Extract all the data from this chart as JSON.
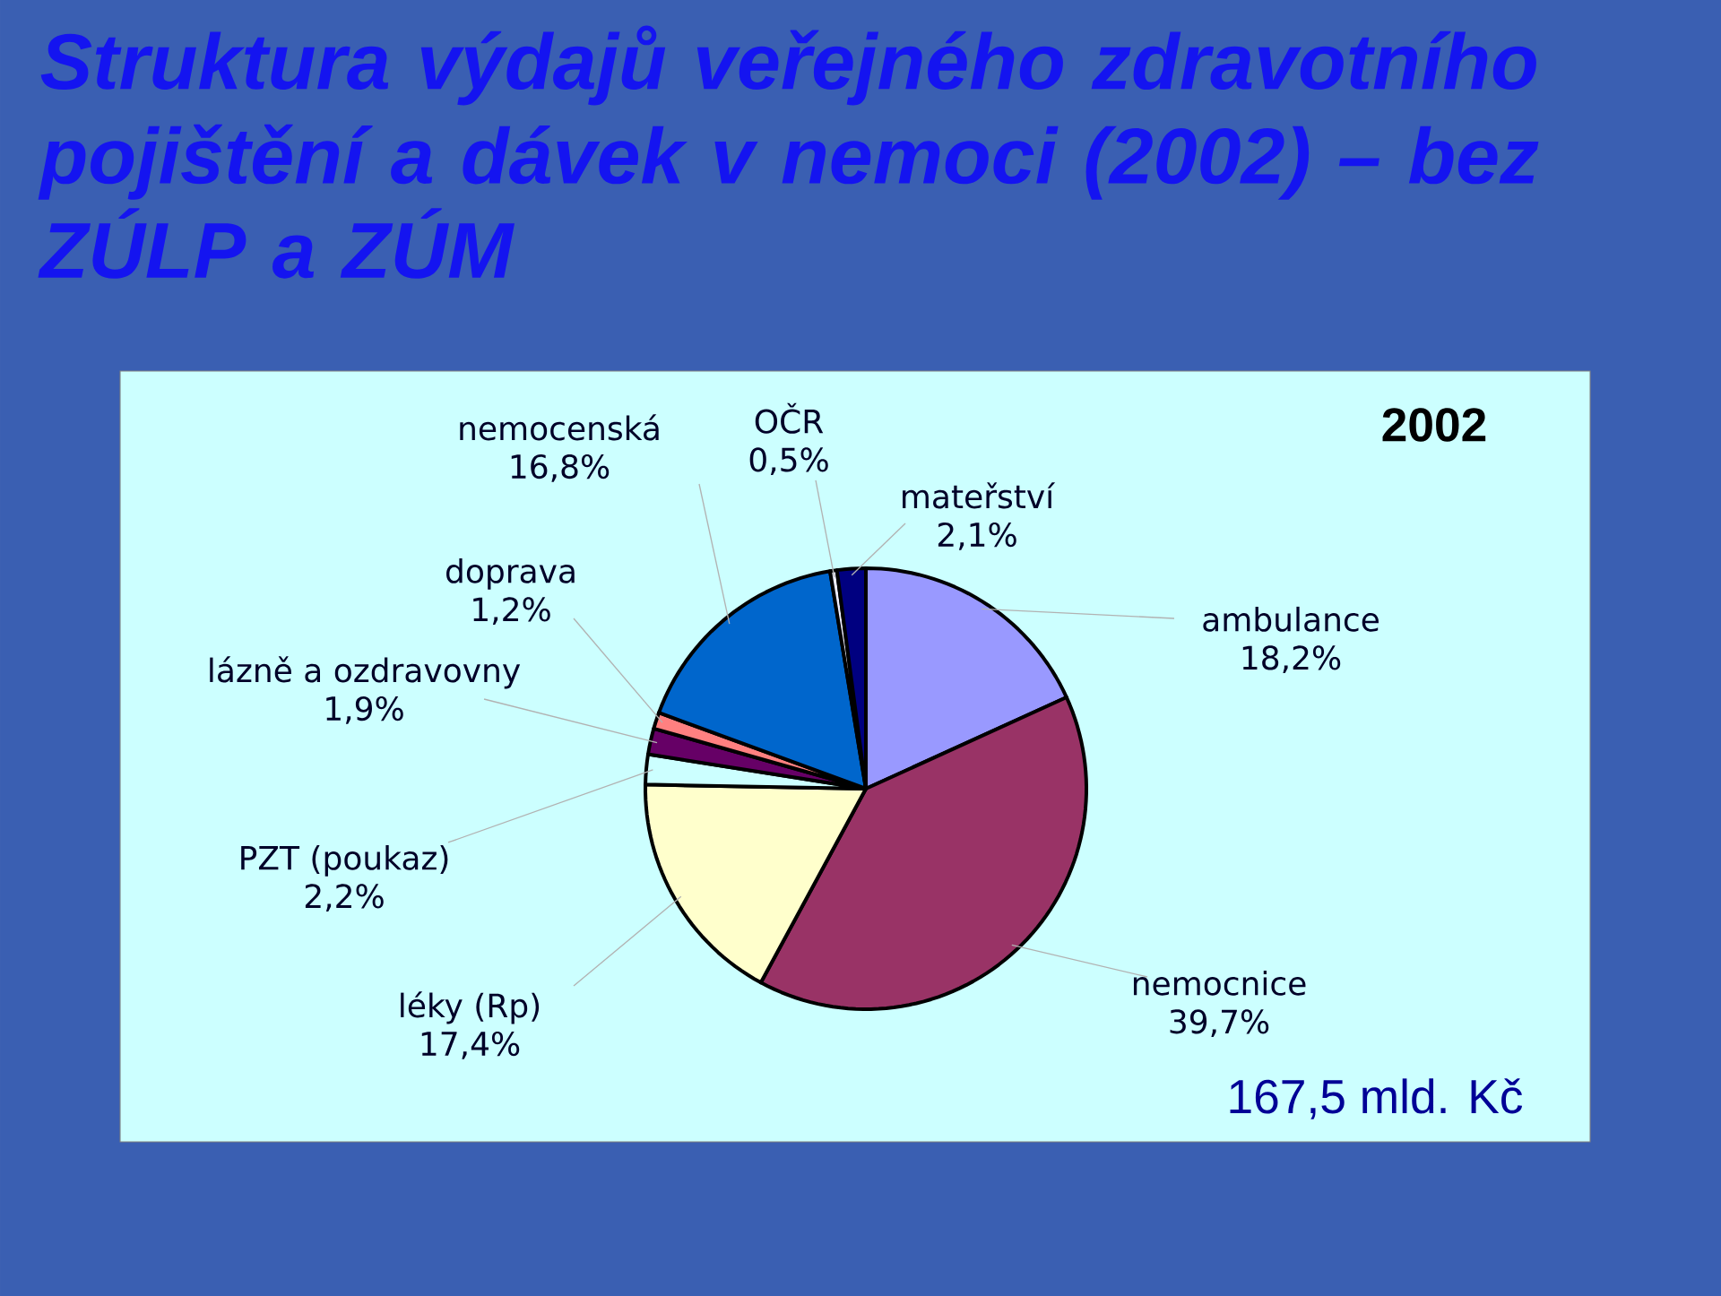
{
  "chart_data": {
    "type": "pie",
    "title": "Struktura výdajů veřejného zdravotního pojištění a dávek v nemoci (2002) – bez ZÚLP a ZÚM",
    "categories": [
      "ambulance",
      "nemocnice",
      "léky (Rp)",
      "PZT (poukaz)",
      "lázně a ozdravovny",
      "doprava",
      "nemocenská",
      "OČR",
      "mateřství"
    ],
    "values": [
      18.2,
      39.7,
      17.4,
      2.2,
      1.9,
      1.2,
      16.8,
      0.5,
      2.1
    ],
    "colors": [
      "#9999ff",
      "#993366",
      "#ffffcc",
      "#ccffff",
      "#660066",
      "#ff8080",
      "#0066cc",
      "#eeeeff",
      "#000080"
    ],
    "value_labels": [
      "18,2%",
      "39,7%",
      "17,4%",
      "2,2%",
      "1,9%",
      "1,2%",
      "16,8%",
      "0,5%",
      "2,1%"
    ],
    "annotations": [
      "2002",
      "167,5 mld. Kč"
    ]
  }
}
